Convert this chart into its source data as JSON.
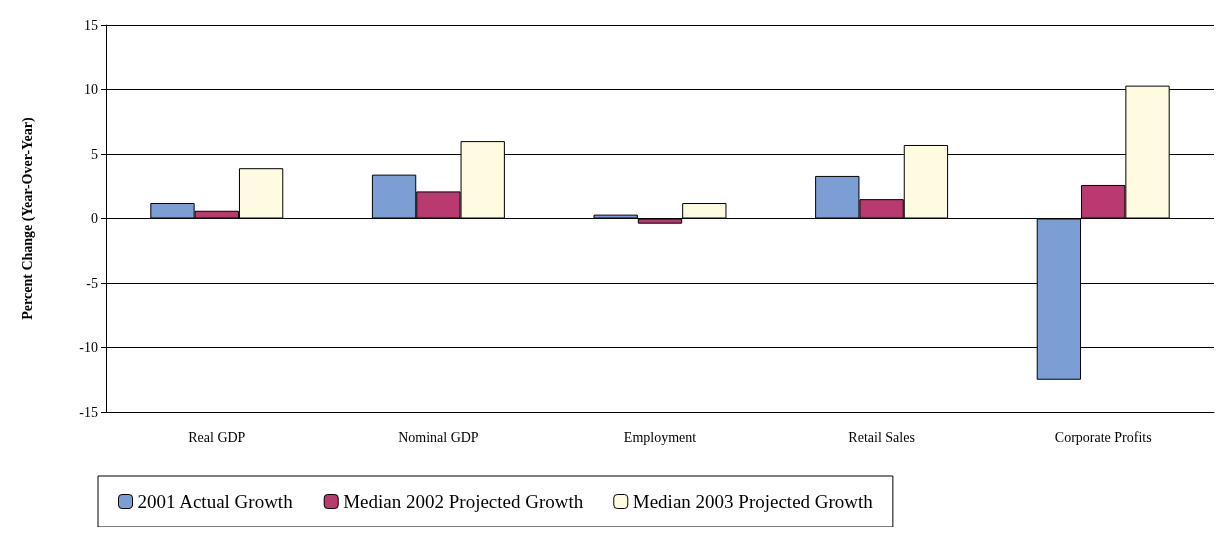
{
  "chart_data": {
    "type": "bar",
    "ylabel": "Percent Change (Year-Over-Year)",
    "categories": [
      "Real GDP",
      "Nominal GDP",
      "Employment",
      "Retail Sales",
      "Corporate Profits"
    ],
    "series": [
      {
        "name": "2001 Actual Growth",
        "color": "#7b9fd4",
        "values": [
          1.2,
          3.4,
          0.3,
          3.3,
          -12.5
        ]
      },
      {
        "name": "Median 2002 Projected Growth",
        "color": "#b93a6e",
        "values": [
          0.6,
          2.1,
          -0.4,
          1.5,
          2.6
        ]
      },
      {
        "name": "Median 2003 Projected Growth",
        "color": "#fffbe0",
        "values": [
          3.9,
          6.0,
          1.2,
          5.7,
          10.3
        ]
      }
    ],
    "ylim": [
      -15,
      15
    ],
    "yticks": [
      -15,
      -10,
      -5,
      0,
      5,
      10,
      15
    ],
    "grid": "y",
    "legend": "bottom"
  }
}
